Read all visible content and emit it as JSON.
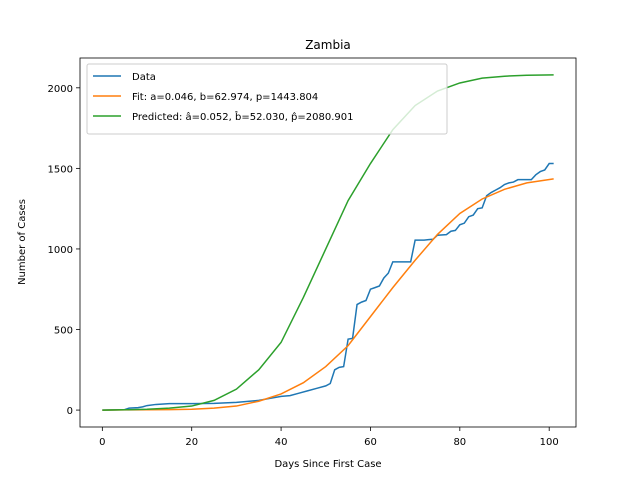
{
  "chart_data": {
    "type": "line",
    "title": "Zambia",
    "x_label": "Days Since First Case",
    "y_label": "Number of Cases",
    "xlim": [
      -5,
      106
    ],
    "ylim": [
      -105,
      2185
    ],
    "xticks": [
      0,
      20,
      40,
      60,
      80,
      100
    ],
    "yticks": [
      0,
      500,
      1000,
      1500,
      2000
    ],
    "grid": false,
    "legend": "upper left",
    "series": [
      {
        "name": "Data",
        "color": "#1f77b4",
        "x": [
          0,
          5,
          6,
          8,
          9,
          10,
          12,
          15,
          20,
          25,
          30,
          35,
          37,
          40,
          42,
          44,
          46,
          48,
          50,
          51,
          52,
          53,
          54,
          55,
          56,
          57,
          58,
          59,
          60,
          61,
          62,
          63,
          64,
          65,
          69,
          70,
          72,
          73,
          74,
          75,
          77,
          78,
          79,
          80,
          81,
          82,
          83,
          84,
          85,
          86,
          87,
          88,
          89,
          90,
          91,
          92,
          93,
          96,
          97,
          98,
          99,
          100,
          101
        ],
        "values": [
          0,
          3,
          12,
          15,
          20,
          28,
          35,
          40,
          40,
          42,
          48,
          60,
          70,
          85,
          90,
          105,
          120,
          135,
          150,
          165,
          250,
          265,
          270,
          440,
          445,
          655,
          670,
          680,
          750,
          760,
          770,
          820,
          850,
          920,
          920,
          1055,
          1055,
          1058,
          1060,
          1085,
          1089,
          1110,
          1115,
          1150,
          1160,
          1200,
          1210,
          1250,
          1255,
          1330,
          1350,
          1365,
          1380,
          1400,
          1410,
          1415,
          1430,
          1430,
          1460,
          1480,
          1490,
          1530,
          1530
        ]
      },
      {
        "name": "Fit: a=0.046, b=62.974, p=1443.804",
        "color": "#ff7f0e",
        "x": [
          0,
          5,
          10,
          15,
          20,
          25,
          30,
          35,
          40,
          45,
          50,
          55,
          60,
          65,
          70,
          75,
          80,
          85,
          90,
          95,
          101
        ],
        "values": [
          0,
          1,
          2,
          3,
          5,
          12,
          25,
          55,
          100,
          170,
          270,
          400,
          580,
          760,
          930,
          1090,
          1220,
          1310,
          1370,
          1410,
          1435
        ]
      },
      {
        "name": "Predicted: â=0.052, b̂=52.030, p̂=2080.901",
        "color": "#2ca02c",
        "x": [
          0,
          5,
          10,
          15,
          20,
          25,
          30,
          35,
          40,
          45,
          50,
          55,
          60,
          65,
          70,
          75,
          80,
          85,
          90,
          95,
          101
        ],
        "values": [
          0,
          2,
          5,
          12,
          25,
          60,
          130,
          250,
          420,
          700,
          1000,
          1300,
          1530,
          1740,
          1890,
          1980,
          2030,
          2060,
          2072,
          2078,
          2080
        ]
      }
    ]
  }
}
